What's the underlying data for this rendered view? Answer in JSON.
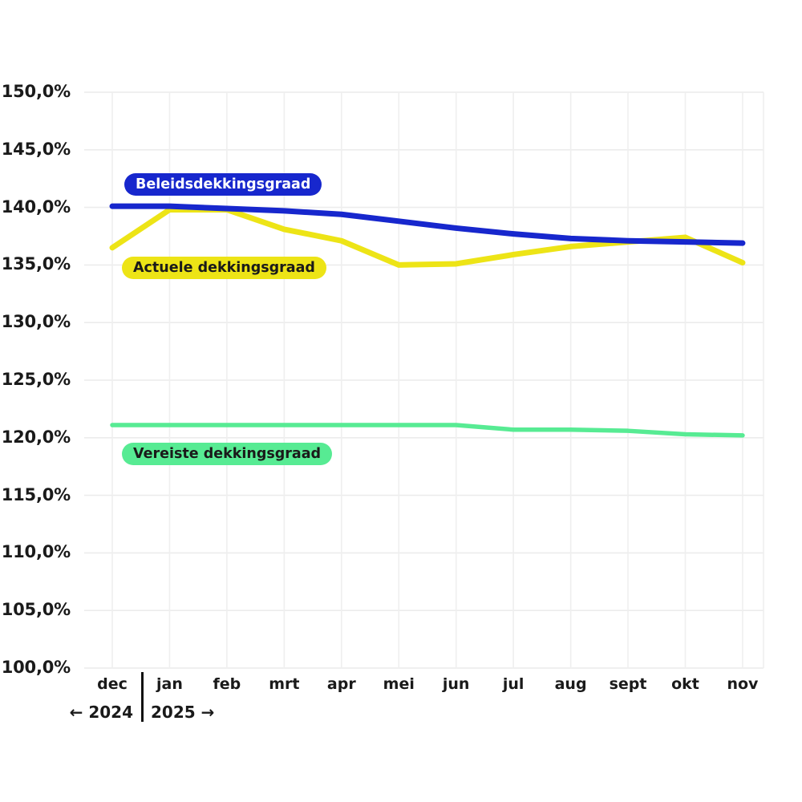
{
  "chart_data": {
    "type": "line",
    "title": "",
    "xlabel": "",
    "ylabel": "",
    "grid": true,
    "legend_position": "inline-labels-on-chart",
    "ylim": [
      100,
      150
    ],
    "x_categories": [
      "dec",
      "jan",
      "feb",
      "mrt",
      "apr",
      "mei",
      "jun",
      "jul",
      "aug",
      "sept",
      "okt",
      "nov"
    ],
    "year_labels": {
      "left": "← 2024",
      "right": "2025 →"
    },
    "yticks": [
      {
        "value": 150,
        "label": "150,0%"
      },
      {
        "value": 145,
        "label": "145,0%"
      },
      {
        "value": 140,
        "label": "140,0%"
      },
      {
        "value": 135,
        "label": "135,0%"
      },
      {
        "value": 130,
        "label": "130,0%"
      },
      {
        "value": 125,
        "label": "125,0%"
      },
      {
        "value": 120,
        "label": "120,0%"
      },
      {
        "value": 115,
        "label": "115,0%"
      },
      {
        "value": 110,
        "label": "110,0%"
      },
      {
        "value": 105,
        "label": "105,0%"
      },
      {
        "value": 100,
        "label": "100,0%"
      }
    ],
    "series": [
      {
        "name": "Beleidsdekkingsgraad",
        "color": "#1727cd",
        "label_text_color": "#ffffff",
        "values": [
          140.1,
          140.1,
          139.9,
          139.7,
          139.4,
          138.8,
          138.2,
          137.7,
          137.3,
          137.1,
          137.0,
          136.9
        ]
      },
      {
        "name": "Actuele dekkingsgraad",
        "color": "#ede416",
        "label_text_color": "#1a1a1a",
        "values": [
          136.5,
          139.8,
          139.8,
          138.1,
          137.1,
          135.0,
          135.1,
          135.9,
          136.6,
          137.0,
          137.4,
          135.2
        ]
      },
      {
        "name": "Vereiste dekkingsgraad",
        "color": "#57eb93",
        "label_text_color": "#1a1a1a",
        "values": [
          121.1,
          121.1,
          121.1,
          121.1,
          121.1,
          121.1,
          121.1,
          120.7,
          120.7,
          120.6,
          120.3,
          120.2
        ]
      }
    ]
  }
}
